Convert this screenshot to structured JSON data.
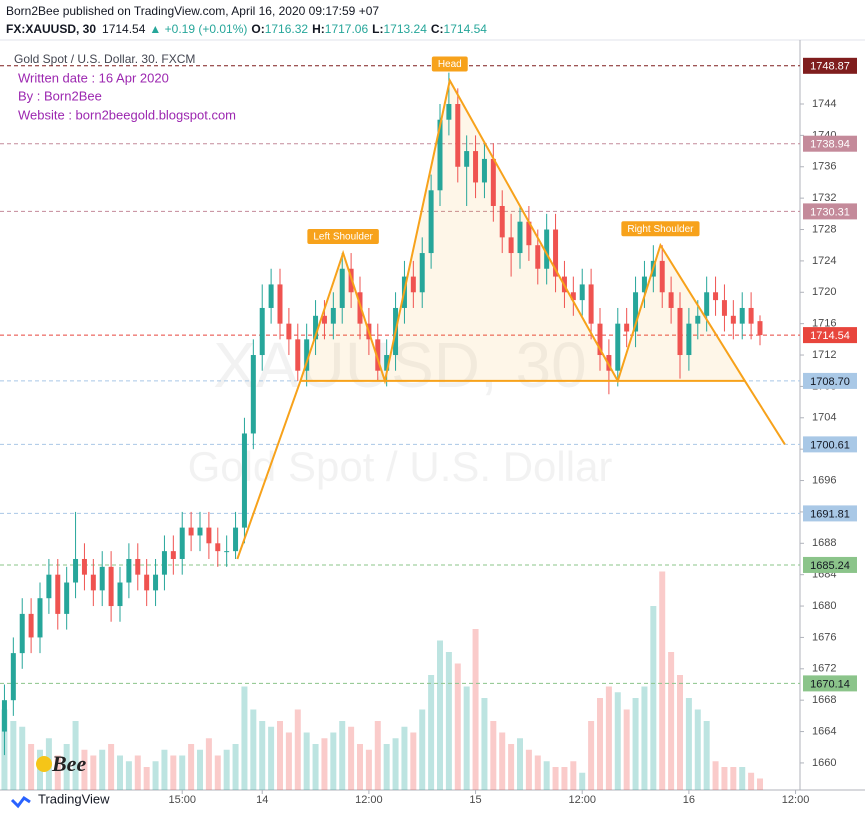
{
  "header": {
    "line1": "Born2Bee published on TradingView.com, April 16, 2020 09:17:59 +07",
    "symbol": "FX:XAUUSD, 30",
    "last": "1714.54",
    "change": "▲ +0.19 (+0.01%)",
    "ohlc": [
      {
        "k": "O:",
        "v": "1716.32"
      },
      {
        "k": "H:",
        "v": "1717.06"
      },
      {
        "k": "L:",
        "v": "1713.24"
      },
      {
        "k": "C:",
        "v": "1714.54"
      }
    ]
  },
  "chart_data": {
    "type": "candlestick",
    "title": "Gold Spot / U.S. Dollar. 30. FXCM",
    "notes": [
      "Written date : 16 Apr 2020",
      "By : Born2Bee",
      "Website : born2beegold.blogspot.com"
    ],
    "watermark": [
      "XAUUSD, 30",
      "Gold Spot / U.S. Dollar"
    ],
    "up_color": "#26a69a",
    "down_color": "#ef5350",
    "xlim": [
      -29.5,
      60.5
    ],
    "ylim": [
      1656.55,
      1752.16
    ],
    "vlim": [
      0,
      200
    ],
    "xticks": [
      {
        "value": -9,
        "label": "15:00"
      },
      {
        "value": 0,
        "label": "14"
      },
      {
        "value": 12,
        "label": "12:00"
      },
      {
        "value": 24,
        "label": "15"
      },
      {
        "value": 36,
        "label": "12:00"
      },
      {
        "value": 48,
        "label": "16"
      },
      {
        "value": 60,
        "label": "12:00"
      }
    ],
    "yticks": [
      1660,
      1664,
      1668,
      1672,
      1676,
      1680,
      1684,
      1688,
      1692,
      1696,
      1700,
      1704,
      1708,
      1712,
      1716,
      1720,
      1724,
      1728,
      1732,
      1736,
      1740,
      1744
    ],
    "x": [
      -29,
      -28,
      -27,
      -26,
      -25,
      -24,
      -23,
      -22,
      -21,
      -20,
      -19,
      -18,
      -17,
      -16,
      -15,
      -14,
      -13,
      -12,
      -11,
      -10,
      -9,
      -8,
      -7,
      -6,
      -5,
      -4,
      -3,
      -2,
      -1,
      0,
      1,
      2,
      3,
      4,
      5,
      6,
      7,
      8,
      9,
      10,
      11,
      12,
      13,
      14,
      15,
      16,
      17,
      18,
      19,
      20,
      21,
      22,
      23,
      24,
      25,
      26,
      27,
      28,
      29,
      30,
      31,
      32,
      33,
      34,
      35,
      36,
      37,
      38,
      39,
      40,
      41,
      42,
      43,
      44,
      45,
      46,
      47,
      48,
      49,
      50,
      51,
      52,
      53,
      54,
      55,
      56
    ],
    "open": [
      1664,
      1668,
      1674,
      1679,
      1676,
      1681,
      1684,
      1679,
      1683,
      1686,
      1684,
      1682,
      1685,
      1680,
      1683,
      1686,
      1684,
      1682,
      1684,
      1687,
      1686,
      1690,
      1689,
      1690,
      1688,
      1687,
      1687,
      1690,
      1702,
      1712,
      1718,
      1721,
      1716,
      1714,
      1710,
      1714,
      1717,
      1716,
      1718,
      1723,
      1720,
      1716,
      1714,
      1710,
      1712,
      1718,
      1722,
      1720,
      1725,
      1733,
      1742,
      1744,
      1736,
      1738,
      1734,
      1737,
      1731,
      1727,
      1725,
      1729,
      1726,
      1723,
      1728,
      1722,
      1720,
      1719,
      1721,
      1716,
      1712,
      1710,
      1716,
      1715,
      1720,
      1722,
      1724,
      1720,
      1718,
      1712,
      1716,
      1717,
      1720,
      1719,
      1717,
      1716,
      1718,
      1716.32
    ],
    "high": [
      1670,
      1676,
      1681,
      1681,
      1683,
      1686,
      1686,
      1685,
      1692,
      1688,
      1686,
      1687,
      1687,
      1685,
      1688,
      1688,
      1686,
      1686,
      1689,
      1689,
      1692,
      1692,
      1692,
      1692,
      1690,
      1689,
      1692,
      1704,
      1714,
      1721,
      1723,
      1723,
      1718,
      1716,
      1716,
      1719,
      1719,
      1720,
      1725,
      1725,
      1722,
      1718,
      1716,
      1714,
      1720,
      1724,
      1724,
      1727,
      1735,
      1744,
      1748,
      1746,
      1740,
      1740,
      1739,
      1739,
      1733,
      1730,
      1731,
      1731,
      1728,
      1730,
      1730,
      1724,
      1722,
      1723,
      1723,
      1718,
      1714,
      1718,
      1718,
      1722,
      1724,
      1726,
      1726,
      1722,
      1720,
      1718,
      1719,
      1722,
      1722,
      1721,
      1719,
      1720,
      1720,
      1717.06
    ],
    "low": [
      1661,
      1666,
      1672,
      1674,
      1674,
      1679,
      1677,
      1677,
      1681,
      1682,
      1680,
      1680,
      1678,
      1678,
      1681,
      1682,
      1680,
      1680,
      1682,
      1684,
      1684,
      1687,
      1687,
      1686,
      1685,
      1685,
      1686,
      1688,
      1700,
      1710,
      1716,
      1714,
      1712,
      1708.7,
      1708,
      1712,
      1714,
      1714,
      1716,
      1718,
      1714,
      1712,
      1708.7,
      1708,
      1710,
      1716,
      1718,
      1718,
      1723,
      1731,
      1740,
      1734,
      1731,
      1732,
      1732,
      1729,
      1725,
      1722,
      1723,
      1724,
      1721,
      1721,
      1720,
      1718,
      1717,
      1717,
      1714,
      1710,
      1707,
      1708,
      1713,
      1713,
      1718,
      1720,
      1718,
      1716,
      1709,
      1710,
      1714,
      1715,
      1717,
      1715,
      1714,
      1714,
      1714,
      1713.24
    ],
    "close": [
      1668,
      1674,
      1679,
      1676,
      1681,
      1684,
      1679,
      1683,
      1686,
      1684,
      1682,
      1685,
      1680,
      1683,
      1686,
      1684,
      1682,
      1684,
      1687,
      1686,
      1690,
      1689,
      1690,
      1688,
      1687,
      1687,
      1690,
      1702,
      1712,
      1718,
      1721,
      1716,
      1714,
      1710,
      1714,
      1717,
      1716,
      1718,
      1723,
      1720,
      1716,
      1714,
      1710,
      1712,
      1718,
      1722,
      1720,
      1725,
      1733,
      1742,
      1744,
      1736,
      1738,
      1734,
      1737,
      1731,
      1727,
      1725,
      1729,
      1726,
      1723,
      1728,
      1722,
      1720,
      1719,
      1721,
      1716,
      1712,
      1710,
      1716,
      1715,
      1720,
      1722,
      1724,
      1720,
      1718,
      1712,
      1716,
      1717,
      1720,
      1719,
      1717,
      1716,
      1718,
      1716,
      1714.54
    ],
    "volume": [
      70,
      60,
      55,
      40,
      35,
      45,
      30,
      40,
      60,
      35,
      30,
      35,
      40,
      30,
      25,
      30,
      20,
      25,
      35,
      30,
      30,
      40,
      35,
      45,
      30,
      35,
      40,
      90,
      70,
      60,
      55,
      60,
      50,
      70,
      50,
      40,
      45,
      50,
      60,
      55,
      40,
      35,
      60,
      40,
      45,
      55,
      50,
      70,
      100,
      130,
      120,
      110,
      90,
      140,
      80,
      60,
      50,
      40,
      45,
      35,
      30,
      25,
      20,
      20,
      25,
      15,
      60,
      80,
      90,
      85,
      70,
      80,
      90,
      160,
      190,
      120,
      100,
      80,
      70,
      60,
      25,
      20,
      20,
      20,
      15,
      10
    ],
    "levels": [
      {
        "value": 1748.87,
        "label": "1748.87",
        "color": "#7f1d1d",
        "text_color": "#ffffff"
      },
      {
        "value": 1738.94,
        "label": "1738.94",
        "color": "#c48a9a",
        "text_color": "#ffffff"
      },
      {
        "value": 1730.31,
        "label": "1730.31",
        "color": "#c48a9a",
        "text_color": "#ffffff"
      },
      {
        "value": 1714.54,
        "label": "1714.54",
        "color": "#e8453c",
        "text_color": "#ffffff"
      },
      {
        "value": 1708.7,
        "label": "1708.70",
        "color": "#a9c8e6",
        "text_color": "#131722"
      },
      {
        "value": 1700.61,
        "label": "1700.61",
        "color": "#a9c8e6",
        "text_color": "#131722"
      },
      {
        "value": 1691.81,
        "label": "1691.81",
        "color": "#a9c8e6",
        "text_color": "#131722"
      },
      {
        "value": 1685.24,
        "label": "1685.24",
        "color": "#8bc48a",
        "text_color": "#131722"
      },
      {
        "value": 1670.14,
        "label": "1670.14",
        "color": "#8bc48a",
        "text_color": "#131722"
      }
    ],
    "pattern": {
      "color": "#f7a21b",
      "x": [
        -2.8,
        4.3,
        9.1,
        13.8,
        21.1,
        40,
        44.8,
        54.3,
        58.8
      ],
      "y": [
        1686,
        1708.7,
        1725,
        1708.7,
        1747,
        1708.7,
        1726,
        1708.7,
        1700.6
      ]
    },
    "neckline": {
      "x": [
        4.3,
        54.3
      ],
      "y": [
        1708.7,
        1708.7
      ]
    },
    "pattern_labels": [
      "Left Shoulder",
      "Head",
      "Right Shoulder"
    ],
    "logo_text": "Bee",
    "footer": "TradingView"
  }
}
